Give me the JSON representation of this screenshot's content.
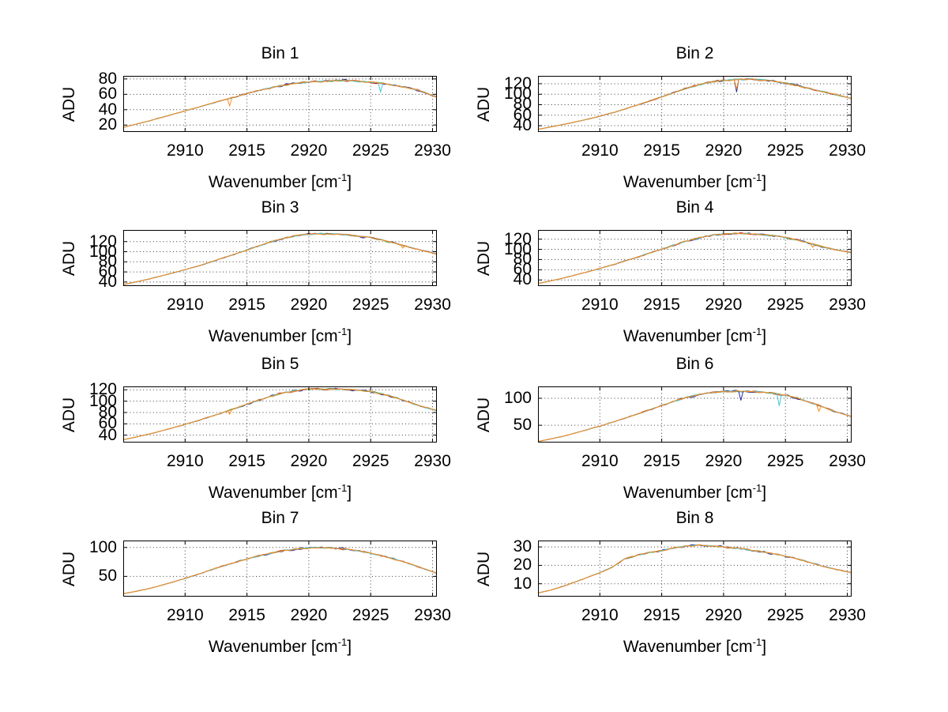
{
  "figure": {
    "background": "#ffffff"
  },
  "axis_labels": {
    "ylabel": "ADU",
    "xlabel_full": "Wavenumber [cm^-1]",
    "xlabel_prefix": "Wavenumber [cm",
    "xlabel_sup": "-1",
    "xlabel_suffix": "]"
  },
  "colors": {
    "traces": [
      "#2a2a9a",
      "#bf3026",
      "#6fa33a",
      "#3fc8da",
      "#ff8c1e"
    ],
    "grid": "#3a3a3a",
    "axis": "#000000",
    "text": "#000000"
  },
  "x_ticks": [
    2910,
    2915,
    2920,
    2925,
    2930
  ],
  "xlim": [
    2905,
    2930.35
  ],
  "x_values": [
    2905,
    2906,
    2907,
    2908,
    2909,
    2910,
    2911,
    2912,
    2913,
    2914,
    2915,
    2916,
    2917,
    2918,
    2919,
    2920,
    2921,
    2922,
    2923,
    2924,
    2925,
    2926,
    2927,
    2928,
    2929,
    2930
  ],
  "chart_data": [
    {
      "type": "line",
      "title": "Bin 1",
      "xlabel": "Wavenumber [cm^-1]",
      "ylabel": "ADU",
      "grid": true,
      "legend": "none",
      "overlaid_traces": 5,
      "y_ticks": [
        20,
        40,
        60,
        80
      ],
      "ylim": [
        11,
        84
      ],
      "values": [
        17,
        21,
        25,
        29.5,
        34,
        38.5,
        43,
        47.5,
        52,
        56.5,
        61,
        65,
        69,
        72,
        74.5,
        76,
        77,
        77.5,
        78,
        77,
        75.5,
        74,
        71.5,
        68.5,
        64.5,
        58.5
      ],
      "end_value": 52.5,
      "spikes": [
        {
          "x": 2913.6,
          "value": 45,
          "color_index": 4
        },
        {
          "x": 2925.8,
          "value": 63,
          "color_index": 3
        }
      ]
    },
    {
      "type": "line",
      "title": "Bin 2",
      "xlabel": "Wavenumber [cm^-1]",
      "ylabel": "ADU",
      "grid": true,
      "legend": "none",
      "overlaid_traces": 5,
      "y_ticks": [
        40,
        60,
        80,
        100,
        120
      ],
      "ylim": [
        28,
        135
      ],
      "values": [
        33,
        37.5,
        42,
        47,
        52.5,
        58,
        64.5,
        71.5,
        79,
        87,
        95,
        103,
        111,
        118,
        123.5,
        126.5,
        128,
        128.5,
        127.5,
        125,
        121,
        116,
        110.5,
        105,
        99.5,
        94
      ],
      "end_value": 93,
      "spikes": [
        {
          "x": 2921.05,
          "value": 104,
          "color_index": 0
        },
        {
          "x": 2921.05,
          "value": 110,
          "color_index": 4
        }
      ]
    },
    {
      "type": "line",
      "title": "Bin 3",
      "xlabel": "Wavenumber [cm^-1]",
      "ylabel": "ADU",
      "grid": true,
      "legend": "none",
      "overlaid_traces": 5,
      "y_ticks": [
        40,
        60,
        80,
        100,
        120
      ],
      "ylim": [
        32,
        143
      ],
      "values": [
        35,
        40,
        45.5,
        51.5,
        58,
        64.5,
        71.5,
        79,
        87,
        95,
        103.5,
        112,
        120,
        127,
        132,
        134.5,
        135.5,
        135,
        133.5,
        131,
        127.5,
        122.5,
        116.5,
        110,
        103.5,
        97.5
      ],
      "end_value": 96,
      "spikes": [
        {
          "x": 2927.6,
          "value": 107,
          "color_index": 4
        }
      ]
    },
    {
      "type": "line",
      "title": "Bin 4",
      "xlabel": "Wavenumber [cm^-1]",
      "ylabel": "ADU",
      "grid": true,
      "legend": "none",
      "overlaid_traces": 5,
      "y_ticks": [
        40,
        60,
        80,
        100,
        120
      ],
      "ylim": [
        28,
        138
      ],
      "values": [
        33,
        38,
        43.5,
        49.5,
        56,
        62.5,
        69.5,
        77,
        84.5,
        92.5,
        100.5,
        108.5,
        116,
        122.5,
        127.5,
        130,
        131,
        130.5,
        129,
        126.5,
        123,
        118,
        111.5,
        105,
        99.5,
        95
      ],
      "end_value": 94,
      "spikes": [
        {
          "x": 2927.2,
          "value": 104,
          "color_index": 4
        }
      ]
    },
    {
      "type": "line",
      "title": "Bin 5",
      "xlabel": "Wavenumber [cm^-1]",
      "ylabel": "ADU",
      "grid": true,
      "legend": "none",
      "overlaid_traces": 5,
      "y_ticks": [
        40,
        60,
        80,
        100,
        120
      ],
      "ylim": [
        27,
        126
      ],
      "values": [
        32,
        36.5,
        41.5,
        47,
        53,
        59,
        65.5,
        72.5,
        79.5,
        87,
        94.5,
        102,
        109,
        115,
        119,
        121,
        121.5,
        121.5,
        121,
        119.5,
        117,
        112.5,
        106.5,
        99,
        91.5,
        85.5
      ],
      "end_value": 84.5,
      "spikes": [
        {
          "x": 2913.6,
          "value": 77,
          "color_index": 4
        }
      ]
    },
    {
      "type": "line",
      "title": "Bin 6",
      "xlabel": "Wavenumber [cm^-1]",
      "ylabel": "ADU",
      "grid": true,
      "legend": "none",
      "overlaid_traces": 5,
      "y_ticks": [
        50,
        100
      ],
      "ylim": [
        18,
        122
      ],
      "values": [
        20,
        24.5,
        29.5,
        35.5,
        42,
        48.5,
        55.5,
        63,
        70.5,
        78.5,
        86.5,
        94.5,
        101.5,
        107,
        110.5,
        112.5,
        113,
        112.5,
        111.5,
        109.5,
        106,
        100,
        92,
        84,
        75.5,
        68.5
      ],
      "end_value": 68,
      "spikes": [
        {
          "x": 2921.4,
          "value": 96,
          "color_index": 0
        },
        {
          "x": 2924.5,
          "value": 86,
          "color_index": 3
        },
        {
          "x": 2927.7,
          "value": 76,
          "color_index": 4
        }
      ]
    },
    {
      "type": "line",
      "title": "Bin 7",
      "xlabel": "Wavenumber [cm^-1]",
      "ylabel": "ADU",
      "grid": true,
      "legend": "none",
      "overlaid_traces": 5,
      "y_ticks": [
        50,
        100
      ],
      "ylim": [
        15,
        112
      ],
      "values": [
        20,
        24,
        28.5,
        34,
        40,
        46.5,
        53.5,
        60.5,
        67.5,
        74,
        80,
        85.5,
        90.5,
        94.5,
        97.5,
        99.5,
        100,
        99,
        97,
        94,
        90,
        85,
        79.5,
        73,
        65.5,
        58
      ],
      "end_value": 57,
      "spikes": []
    },
    {
      "type": "line",
      "title": "Bin 8",
      "xlabel": "Wavenumber [cm^-1]",
      "ylabel": "ADU",
      "grid": true,
      "legend": "none",
      "overlaid_traces": 5,
      "y_ticks": [
        10,
        20,
        30
      ],
      "ylim": [
        3,
        33.5
      ],
      "values": [
        5,
        6.5,
        8.5,
        11,
        13.5,
        16,
        19,
        23.5,
        25.5,
        27,
        28,
        29.5,
        30.5,
        31,
        30.5,
        30,
        29.5,
        28.5,
        27.5,
        26.5,
        25,
        23.5,
        21.5,
        19.5,
        18,
        16.5
      ],
      "end_value": 16,
      "spikes": []
    }
  ]
}
